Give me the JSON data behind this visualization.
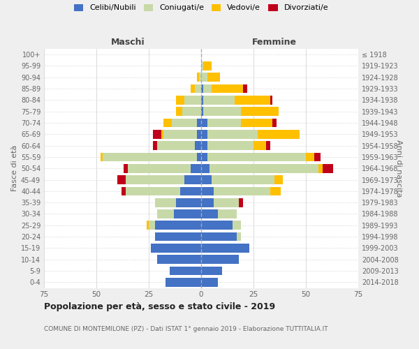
{
  "age_groups": [
    "0-4",
    "5-9",
    "10-14",
    "15-19",
    "20-24",
    "25-29",
    "30-34",
    "35-39",
    "40-44",
    "45-49",
    "50-54",
    "55-59",
    "60-64",
    "65-69",
    "70-74",
    "75-79",
    "80-84",
    "85-89",
    "90-94",
    "95-99",
    "100+"
  ],
  "birth_years": [
    "2014-2018",
    "2009-2013",
    "2004-2008",
    "1999-2003",
    "1994-1998",
    "1989-1993",
    "1984-1988",
    "1979-1983",
    "1974-1978",
    "1969-1973",
    "1964-1968",
    "1959-1963",
    "1954-1958",
    "1949-1953",
    "1944-1948",
    "1939-1943",
    "1934-1938",
    "1929-1933",
    "1924-1928",
    "1919-1923",
    "≤ 1918"
  ],
  "males": {
    "celibi": [
      17,
      15,
      21,
      24,
      22,
      22,
      13,
      12,
      10,
      8,
      5,
      2,
      3,
      2,
      2,
      0,
      0,
      0,
      0,
      0,
      0
    ],
    "coniugati": [
      0,
      0,
      0,
      0,
      0,
      3,
      8,
      10,
      26,
      28,
      30,
      45,
      18,
      16,
      12,
      9,
      8,
      3,
      1,
      0,
      0
    ],
    "vedovi": [
      0,
      0,
      0,
      0,
      0,
      1,
      0,
      0,
      0,
      0,
      0,
      1,
      0,
      1,
      4,
      3,
      4,
      2,
      1,
      0,
      0
    ],
    "divorziati": [
      0,
      0,
      0,
      0,
      0,
      0,
      0,
      0,
      2,
      4,
      2,
      0,
      2,
      4,
      0,
      0,
      0,
      0,
      0,
      0,
      0
    ]
  },
  "females": {
    "nubili": [
      8,
      10,
      18,
      23,
      17,
      15,
      8,
      6,
      6,
      5,
      4,
      3,
      3,
      3,
      3,
      1,
      1,
      1,
      0,
      0,
      0
    ],
    "coniugate": [
      0,
      0,
      0,
      0,
      2,
      4,
      9,
      12,
      27,
      30,
      52,
      47,
      22,
      24,
      16,
      18,
      15,
      4,
      3,
      1,
      0
    ],
    "vedove": [
      0,
      0,
      0,
      0,
      0,
      0,
      0,
      0,
      5,
      4,
      2,
      4,
      6,
      20,
      15,
      18,
      17,
      15,
      6,
      4,
      0
    ],
    "divorziate": [
      0,
      0,
      0,
      0,
      0,
      0,
      0,
      2,
      0,
      0,
      5,
      3,
      2,
      0,
      2,
      0,
      1,
      2,
      0,
      0,
      0
    ]
  },
  "colors": {
    "celibi": "#4472c4",
    "coniugati": "#c8d9a8",
    "vedovi": "#ffc000",
    "divorziati": "#c0001a"
  },
  "title": "Popolazione per età, sesso e stato civile - 2019",
  "subtitle": "COMUNE DI MONTEMILONE (PZ) - Dati ISTAT 1° gennaio 2019 - Elaborazione TUTTITALIA.IT",
  "xlabel_maschi": "Maschi",
  "xlabel_femmine": "Femmine",
  "ylabel_left": "Fasce di età",
  "ylabel_right": "Anni di nascita",
  "xlim": 75,
  "background_color": "#efefef",
  "plot_bg": "#ffffff"
}
